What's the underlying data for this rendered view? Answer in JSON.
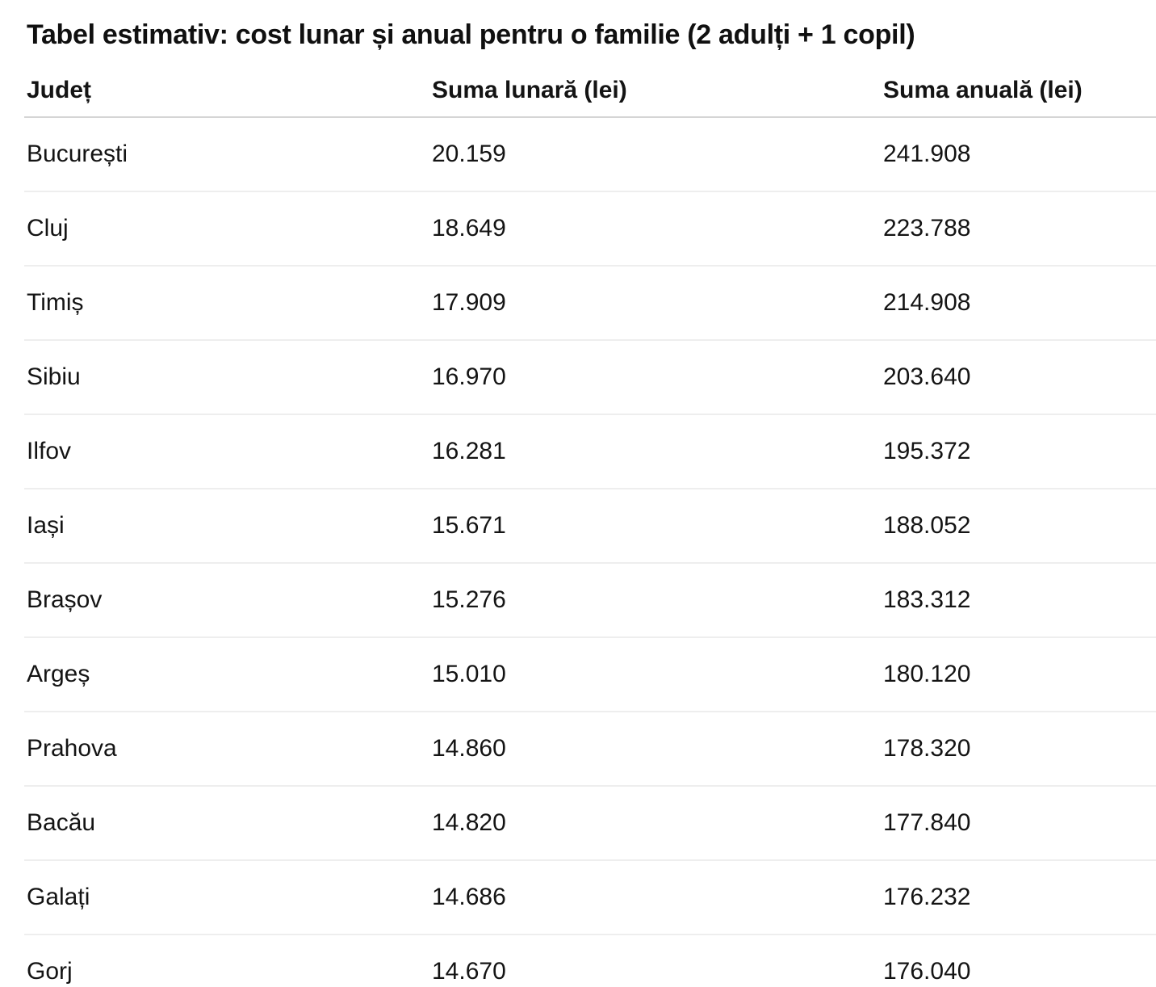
{
  "page": {
    "title": "Tabel estimativ: cost lunar și anual pentru o familie (2 adulți + 1 copil)"
  },
  "table": {
    "headers": [
      {
        "id": "judet",
        "label": "Județ"
      },
      {
        "id": "suma_lunara",
        "label": "Suma lunară (lei)"
      },
      {
        "id": "suma_anuala",
        "label": "Suma anuală (lei)"
      }
    ],
    "rows": [
      {
        "judet": "București",
        "suma_lunara": "20.159",
        "suma_anuala": "241.908"
      },
      {
        "judet": "Cluj",
        "suma_lunara": "18.649",
        "suma_anuala": "223.788"
      },
      {
        "judet": "Timiș",
        "suma_lunara": "17.909",
        "suma_anuala": "214.908"
      },
      {
        "judet": "Sibiu",
        "suma_lunara": "16.970",
        "suma_anuala": "203.640"
      },
      {
        "judet": "Ilfov",
        "suma_lunara": "16.281",
        "suma_anuala": "195.372"
      },
      {
        "judet": "Iași",
        "suma_lunara": "15.671",
        "suma_anuala": "188.052"
      },
      {
        "judet": "Brașov",
        "suma_lunara": "15.276",
        "suma_anuala": "183.312"
      },
      {
        "judet": "Argeș",
        "suma_lunara": "15.010",
        "suma_anuala": "180.120"
      },
      {
        "judet": "Prahova",
        "suma_lunara": "14.860",
        "suma_anuala": "178.320"
      },
      {
        "judet": "Bacău",
        "suma_lunara": "14.820",
        "suma_anuala": "177.840"
      },
      {
        "judet": "Galați",
        "suma_lunara": "14.686",
        "suma_anuala": "176.232"
      },
      {
        "judet": "Gorj",
        "suma_lunara": "14.670",
        "suma_anuala": "176.040"
      }
    ]
  },
  "colors": {
    "text": "#141414",
    "title": "#101010",
    "header_divider": "#d5d5d5",
    "row_divider": "#eeeeee",
    "background": "#ffffff"
  }
}
